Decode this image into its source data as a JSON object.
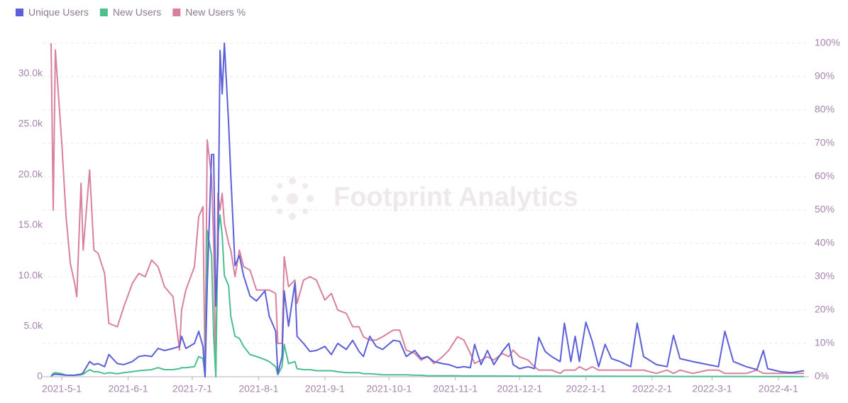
{
  "chart_data": {
    "type": "line",
    "watermark": "Footprint Analytics",
    "x": [
      "2021-4-26",
      "2021-4-27",
      "2021-4-28",
      "2021-5-1",
      "2021-5-3",
      "2021-5-5",
      "2021-5-7",
      "2021-5-8",
      "2021-5-10",
      "2021-5-11",
      "2021-5-14",
      "2021-5-16",
      "2021-5-18",
      "2021-5-21",
      "2021-5-23",
      "2021-5-27",
      "2021-5-30",
      "2021-6-3",
      "2021-6-6",
      "2021-6-9",
      "2021-6-12",
      "2021-6-15",
      "2021-6-18",
      "2021-6-22",
      "2021-6-25",
      "2021-6-26",
      "2021-6-28",
      "2021-7-2",
      "2021-7-4",
      "2021-7-6",
      "2021-7-7",
      "2021-7-8",
      "2021-7-10",
      "2021-7-11",
      "2021-7-12",
      "2021-7-13",
      "2021-7-14",
      "2021-7-15",
      "2021-7-16",
      "2021-7-18",
      "2021-7-19",
      "2021-7-21",
      "2021-7-23",
      "2021-7-25",
      "2021-7-28",
      "2021-7-31",
      "2021-8-4",
      "2021-8-6",
      "2021-8-9",
      "2021-8-10",
      "2021-8-12",
      "2021-8-13",
      "2021-8-15",
      "2021-8-18",
      "2021-8-19",
      "2021-8-22",
      "2021-8-25",
      "2021-8-28",
      "2021-9-1",
      "2021-9-4",
      "2021-9-7",
      "2021-9-11",
      "2021-9-14",
      "2021-9-17",
      "2021-9-19",
      "2021-9-22",
      "2021-9-25",
      "2021-9-28",
      "2021-10-3",
      "2021-10-6",
      "2021-10-9",
      "2021-10-13",
      "2021-10-16",
      "2021-10-19",
      "2021-10-22",
      "2021-10-26",
      "2021-10-29",
      "2021-11-2",
      "2021-11-5",
      "2021-11-8",
      "2021-11-10",
      "2021-11-13",
      "2021-11-16",
      "2021-11-19",
      "2021-11-23",
      "2021-11-26",
      "2021-11-28",
      "2021-12-1",
      "2021-12-5",
      "2021-12-8",
      "2021-12-10",
      "2021-12-13",
      "2021-12-16",
      "2021-12-20",
      "2021-12-22",
      "2021-12-25",
      "2021-12-27",
      "2021-12-29",
      "2022-1-1",
      "2022-1-4",
      "2022-1-7",
      "2022-1-10",
      "2022-1-13",
      "2022-1-17",
      "2022-1-22",
      "2022-1-25",
      "2022-1-28",
      "2022-2-3",
      "2022-2-8",
      "2022-2-11",
      "2022-2-14",
      "2022-2-20",
      "2022-2-27",
      "2022-3-4",
      "2022-3-7",
      "2022-3-11",
      "2022-3-17",
      "2022-3-22",
      "2022-3-25",
      "2022-3-27",
      "2022-4-2",
      "2022-4-7",
      "2022-4-10",
      "2022-4-13"
    ],
    "series": [
      {
        "name": "Unique Users",
        "color": "#5b5fd8",
        "values": [
          100,
          200,
          250,
          200,
          150,
          150,
          150,
          200,
          250,
          400,
          1500,
          1200,
          1300,
          1000,
          2200,
          1300,
          1200,
          1500,
          2000,
          2100,
          2000,
          2800,
          2600,
          2800,
          3000,
          4000,
          2800,
          3300,
          4500,
          3000,
          0,
          9000,
          22000,
          22000,
          7000,
          12000,
          32300,
          28000,
          33000,
          25000,
          20000,
          11000,
          12000,
          10000,
          8000,
          7500,
          8500,
          6000,
          4500,
          300,
          2000,
          8500,
          5000,
          9300,
          4000,
          3300,
          2500,
          2600,
          3000,
          2200,
          3300,
          2700,
          3600,
          2500,
          2000,
          4000,
          3000,
          2700,
          3600,
          3500,
          2000,
          2600,
          1800,
          2000,
          1500,
          1300,
          1200,
          900,
          1000,
          900,
          3200,
          1200,
          2600,
          1200,
          2500,
          3300,
          1200,
          800,
          1000,
          800,
          3900,
          2500,
          2000,
          1500,
          5300,
          1500,
          4000,
          1500,
          5400,
          3500,
          1000,
          3200,
          1800,
          1500,
          1000,
          5300,
          2000,
          1200,
          1000,
          4100,
          1800,
          1500,
          1200,
          1000,
          4500,
          1500,
          1000,
          700,
          2600,
          800,
          500,
          400,
          500,
          600
        ]
      },
      {
        "name": "New Users",
        "color": "#4cbf8f",
        "values": [
          0,
          350,
          400,
          300,
          150,
          150,
          150,
          150,
          200,
          250,
          700,
          500,
          500,
          300,
          400,
          300,
          400,
          500,
          600,
          650,
          700,
          900,
          700,
          700,
          800,
          900,
          900,
          1000,
          2000,
          1800,
          0,
          14500,
          12000,
          4000,
          0,
          14000,
          16000,
          14000,
          10000,
          9000,
          6000,
          4000,
          3800,
          3000,
          2200,
          2000,
          1700,
          1500,
          1000,
          200,
          1000,
          3200,
          1300,
          1500,
          800,
          700,
          700,
          600,
          600,
          600,
          500,
          400,
          400,
          400,
          300,
          300,
          250,
          200,
          200,
          200,
          200,
          150,
          150,
          100,
          100,
          100,
          100,
          100,
          80,
          80,
          80,
          80,
          80,
          80,
          70,
          70,
          60,
          60,
          60,
          60,
          60,
          60,
          50,
          50,
          50,
          50,
          50,
          50,
          50,
          50,
          50,
          50,
          50,
          40,
          40,
          40,
          40,
          40,
          40,
          30,
          30,
          30,
          30,
          30,
          30,
          30,
          30,
          20,
          20,
          20,
          20,
          20,
          20,
          20
        ]
      },
      {
        "name": "New Users %",
        "color": "#d8819f",
        "axis": "y2",
        "values": [
          100,
          50,
          98,
          70,
          48,
          34,
          28,
          24,
          58,
          38,
          62,
          38,
          37,
          31,
          16,
          15,
          21,
          28,
          31,
          30,
          35,
          33,
          27,
          24,
          8,
          20,
          26,
          33,
          48,
          51,
          0,
          71,
          60,
          40,
          0,
          55,
          50,
          55,
          46,
          40,
          38,
          30,
          38,
          33,
          32,
          26,
          26,
          26,
          25,
          10,
          10,
          36,
          27,
          29,
          22,
          29,
          30,
          29,
          23,
          25,
          20,
          19,
          15,
          15,
          12,
          11,
          11,
          12,
          14,
          14,
          8,
          7,
          5,
          6,
          4,
          6,
          8,
          12,
          11,
          7,
          4,
          5,
          6,
          5,
          7,
          6,
          8,
          6,
          5,
          3,
          2,
          2,
          2,
          1,
          2,
          2,
          2,
          3,
          2,
          3,
          2,
          2,
          2,
          2,
          2,
          2,
          2,
          1,
          2,
          1,
          2,
          1,
          2,
          2,
          1,
          1,
          1,
          2,
          1,
          1,
          1,
          1,
          1,
          1
        ]
      }
    ],
    "xlim": [
      "2021-4-26",
      "2022-4-13"
    ],
    "xticks": [
      "2021-5-1",
      "2021-6-1",
      "2021-7-1",
      "2021-8-1",
      "2021-9-1",
      "2021-10-1",
      "2021-11-1",
      "2021-12-1",
      "2022-1-1",
      "2022-2-1",
      "2022-3-1",
      "2022-4-1"
    ],
    "ylim": [
      0,
      33000
    ],
    "yticks": [
      0,
      {
        "value": 5000,
        "label": "5.0k"
      },
      {
        "value": 10000,
        "label": "10.0k"
      },
      {
        "value": 15000,
        "label": "15.0k"
      },
      {
        "value": 20000,
        "label": "20.0k"
      },
      {
        "value": 25000,
        "label": "25.0k"
      },
      {
        "value": 30000,
        "label": "30.0k"
      }
    ],
    "y2lim": [
      0,
      100
    ],
    "y2ticks": [
      {
        "value": 0,
        "label": "0%"
      },
      {
        "value": 10,
        "label": "10%"
      },
      {
        "value": 20,
        "label": "20%"
      },
      {
        "value": 30,
        "label": "30%"
      },
      {
        "value": 40,
        "label": "40%"
      },
      {
        "value": 50,
        "label": "50%"
      },
      {
        "value": 60,
        "label": "60%"
      },
      {
        "value": 70,
        "label": "70%"
      },
      {
        "value": 80,
        "label": "80%"
      },
      {
        "value": 90,
        "label": "90%"
      },
      {
        "value": 100,
        "label": "100%"
      }
    ],
    "grid": true,
    "legend": "top-left"
  }
}
